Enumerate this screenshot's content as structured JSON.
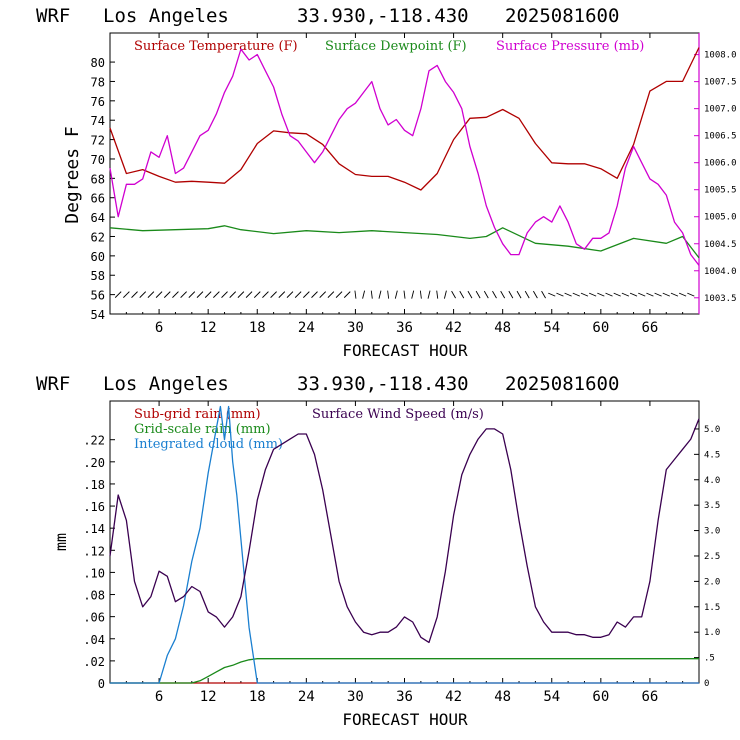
{
  "colors": {
    "temperature": "#b00000",
    "dewpoint": "#1a8a1a",
    "pressure": "#d000d0",
    "subgrid_rain": "#b00000",
    "gridscale_rain": "#1a8a1a",
    "cloud": "#1a7fd0",
    "wind": "#3a0050",
    "frame": "#000000"
  },
  "top": {
    "header": {
      "model": "WRF",
      "location": "Los Angeles",
      "coords": "33.930,-118.430",
      "run": "2025081600"
    },
    "legend": {
      "temp": "Surface Temperature (F)",
      "dew": "Surface Dewpoint (F)",
      "pres": "Surface Pressure (mb)"
    },
    "ylabel": "Degrees F",
    "xlabel": "FORECAST HOUR"
  },
  "bottom": {
    "header": {
      "model": "WRF",
      "location": "Los Angeles",
      "coords": "33.930,-118.430",
      "run": "2025081600"
    },
    "legend": {
      "subgrid": "Sub-grid rain (mm)",
      "gridscale": "Grid-scale rain (mm)",
      "cloud": "Integrated cloud (mm)",
      "wind": "Surface Wind Speed (m/s)"
    },
    "ylabel": "mm",
    "xlabel": "FORECAST HOUR"
  },
  "chart_data": [
    {
      "type": "line",
      "title": "WRF  Los Angeles   33.930,-118.430  2025081600",
      "xlabel": "FORECAST HOUR",
      "ylabel": "Degrees F",
      "xlim": [
        0,
        72
      ],
      "ylim": [
        54,
        83
      ],
      "xticks": [
        "6",
        "12",
        "18",
        "24",
        "30",
        "36",
        "42",
        "48",
        "54",
        "60",
        "66"
      ],
      "xtick_values": [
        6,
        12,
        18,
        24,
        30,
        36,
        42,
        48,
        54,
        60,
        66
      ],
      "yticks": [
        "54",
        "56",
        "58",
        "60",
        "62",
        "64",
        "66",
        "68",
        "70",
        "72",
        "74",
        "76",
        "78",
        "80"
      ],
      "ytick_values": [
        54,
        56,
        58,
        60,
        62,
        64,
        66,
        68,
        70,
        72,
        74,
        76,
        78,
        80
      ],
      "y2lim": [
        1003.2,
        1008.4
      ],
      "y2ticks": [
        "1003.5",
        "1004.0",
        "1004.5",
        "1005.0",
        "1005.5",
        "1006.0",
        "1006.5",
        "1007.0",
        "1007.5",
        "1008.0"
      ],
      "y2tick_values": [
        1003.5,
        1004,
        1004.5,
        1005,
        1005.5,
        1006,
        1006.5,
        1007,
        1007.5,
        1008
      ],
      "grid": false,
      "legend": "top",
      "wind_barbs_row": true,
      "series": [
        {
          "name": "Surface Temperature (F)",
          "axis": "left",
          "x": [
            0,
            2,
            4,
            6,
            8,
            10,
            12,
            14,
            16,
            18,
            20,
            22,
            24,
            26,
            28,
            30,
            32,
            34,
            36,
            38,
            40,
            42,
            44,
            46,
            48,
            50,
            52,
            54,
            56,
            58,
            60,
            62,
            64,
            66,
            68,
            70,
            72
          ],
          "y": [
            73.2,
            68.5,
            68.9,
            68.2,
            67.6,
            67.7,
            67.6,
            67.5,
            68.9,
            71.6,
            72.9,
            72.7,
            72.6,
            71.5,
            69.5,
            68.4,
            68.2,
            68.2,
            67.6,
            66.8,
            68.5,
            72.0,
            74.2,
            74.3,
            75.1,
            74.2,
            71.6,
            69.6,
            69.5,
            69.5,
            69.0,
            68.0,
            71.5,
            77.0,
            78.0,
            78.0,
            81.5
          ]
        },
        {
          "name": "Surface Dewpoint (F)",
          "axis": "left",
          "x": [
            0,
            4,
            8,
            12,
            14,
            16,
            20,
            24,
            28,
            32,
            36,
            40,
            44,
            46,
            48,
            52,
            56,
            60,
            64,
            68,
            70,
            72
          ],
          "y": [
            62.9,
            62.6,
            62.7,
            62.8,
            63.1,
            62.7,
            62.3,
            62.6,
            62.4,
            62.6,
            62.4,
            62.2,
            61.8,
            62.0,
            62.9,
            61.3,
            61.0,
            60.5,
            61.8,
            61.3,
            62.0,
            59.8
          ]
        },
        {
          "name": "Surface Pressure (mb)",
          "axis": "right",
          "x": [
            0,
            1,
            2,
            3,
            4,
            5,
            6,
            7,
            8,
            9,
            10,
            11,
            12,
            13,
            14,
            15,
            16,
            17,
            18,
            19,
            20,
            21,
            22,
            23,
            24,
            25,
            26,
            27,
            28,
            29,
            30,
            31,
            32,
            33,
            34,
            35,
            36,
            37,
            38,
            39,
            40,
            41,
            42,
            43,
            44,
            45,
            46,
            47,
            48,
            49,
            50,
            51,
            52,
            53,
            54,
            55,
            56,
            57,
            58,
            59,
            60,
            61,
            62,
            63,
            64,
            65,
            66,
            67,
            68,
            69,
            70,
            71,
            72
          ],
          "y": [
            1005.9,
            1005.0,
            1005.6,
            1005.6,
            1005.7,
            1006.2,
            1006.1,
            1006.5,
            1005.8,
            1005.9,
            1006.2,
            1006.5,
            1006.6,
            1006.9,
            1007.3,
            1007.6,
            1008.1,
            1007.9,
            1008.0,
            1007.7,
            1007.4,
            1006.9,
            1006.5,
            1006.4,
            1006.2,
            1006.0,
            1006.2,
            1006.5,
            1006.8,
            1007.0,
            1007.1,
            1007.3,
            1007.5,
            1007.0,
            1006.7,
            1006.8,
            1006.6,
            1006.5,
            1007.0,
            1007.7,
            1007.8,
            1007.5,
            1007.3,
            1007.0,
            1006.3,
            1005.8,
            1005.2,
            1004.8,
            1004.5,
            1004.3,
            1004.3,
            1004.7,
            1004.9,
            1005.0,
            1004.9,
            1005.2,
            1004.9,
            1004.5,
            1004.4,
            1004.6,
            1004.6,
            1004.7,
            1005.2,
            1005.9,
            1006.3,
            1006.0,
            1005.7,
            1005.6,
            1005.4,
            1004.9,
            1004.7,
            1004.3,
            1004.1
          ]
        }
      ]
    },
    {
      "type": "line",
      "title": "WRF  Los Angeles   33.930,-118.430  2025081600",
      "xlabel": "FORECAST HOUR",
      "ylabel": "mm",
      "xlim": [
        0,
        72
      ],
      "ylim": [
        0,
        0.255
      ],
      "xticks": [
        "6",
        "12",
        "18",
        "24",
        "30",
        "36",
        "42",
        "48",
        "54",
        "60",
        "66"
      ],
      "xtick_values": [
        6,
        12,
        18,
        24,
        30,
        36,
        42,
        48,
        54,
        60,
        66
      ],
      "yticks": [
        "0",
        ".02",
        ".04",
        ".06",
        ".08",
        ".10",
        ".12",
        ".14",
        ".16",
        ".18",
        ".20",
        ".22"
      ],
      "ytick_values": [
        0,
        0.02,
        0.04,
        0.06,
        0.08,
        0.1,
        0.12,
        0.14,
        0.16,
        0.18,
        0.2,
        0.22
      ],
      "y2lim": [
        0,
        5.55
      ],
      "y2ticks": [
        "0",
        ".5",
        "1.0",
        "1.5",
        "2.0",
        "2.5",
        "3.0",
        "3.5",
        "4.0",
        "4.5",
        "5.0"
      ],
      "y2tick_values": [
        0,
        0.5,
        1,
        1.5,
        2,
        2.5,
        3,
        3.5,
        4,
        4.5,
        5
      ],
      "grid": false,
      "legend": "top",
      "series": [
        {
          "name": "Sub-grid rain (mm)",
          "axis": "left",
          "x": [
            0,
            72
          ],
          "y": [
            0,
            0
          ]
        },
        {
          "name": "Grid-scale rain (mm)",
          "axis": "left",
          "x": [
            0,
            10,
            11,
            12,
            13,
            14,
            15,
            16,
            17,
            18,
            72
          ],
          "y": [
            0,
            0,
            0.002,
            0.006,
            0.01,
            0.014,
            0.016,
            0.019,
            0.021,
            0.022,
            0.022
          ]
        },
        {
          "name": "Integrated cloud (mm)",
          "axis": "left",
          "x": [
            0,
            6,
            7,
            8,
            9,
            10,
            11,
            12,
            13,
            13.5,
            14,
            14.5,
            15,
            15.5,
            16,
            17,
            18,
            72
          ],
          "y": [
            0,
            0,
            0.025,
            0.04,
            0.07,
            0.11,
            0.14,
            0.19,
            0.23,
            0.25,
            0.22,
            0.25,
            0.2,
            0.17,
            0.13,
            0.05,
            0,
            0
          ]
        },
        {
          "name": "Surface Wind Speed (m/s)",
          "axis": "right",
          "x": [
            0,
            1,
            2,
            3,
            4,
            5,
            6,
            7,
            8,
            9,
            10,
            11,
            12,
            13,
            14,
            15,
            16,
            17,
            18,
            19,
            20,
            21,
            22,
            23,
            24,
            25,
            26,
            27,
            28,
            29,
            30,
            31,
            32,
            33,
            34,
            35,
            36,
            37,
            38,
            39,
            40,
            41,
            42,
            43,
            44,
            45,
            46,
            47,
            48,
            49,
            50,
            51,
            52,
            53,
            54,
            55,
            56,
            57,
            58,
            59,
            60,
            61,
            62,
            63,
            64,
            65,
            66,
            67,
            68,
            69,
            70,
            71,
            72
          ],
          "y": [
            2.5,
            3.7,
            3.2,
            2.0,
            1.5,
            1.7,
            2.2,
            2.1,
            1.6,
            1.7,
            1.9,
            1.8,
            1.4,
            1.3,
            1.1,
            1.3,
            1.7,
            2.6,
            3.6,
            4.2,
            4.6,
            4.7,
            4.8,
            4.9,
            4.9,
            4.5,
            3.8,
            2.9,
            2.0,
            1.5,
            1.2,
            1.0,
            0.95,
            1.0,
            1.0,
            1.1,
            1.3,
            1.2,
            0.9,
            0.8,
            1.3,
            2.2,
            3.3,
            4.1,
            4.5,
            4.8,
            5.0,
            5.0,
            4.9,
            4.2,
            3.2,
            2.3,
            1.5,
            1.2,
            1.0,
            1.0,
            1.0,
            0.95,
            0.95,
            0.9,
            0.9,
            0.95,
            1.2,
            1.1,
            1.3,
            1.3,
            2.0,
            3.2,
            4.2,
            4.4,
            4.6,
            4.8,
            5.2
          ]
        }
      ]
    }
  ]
}
